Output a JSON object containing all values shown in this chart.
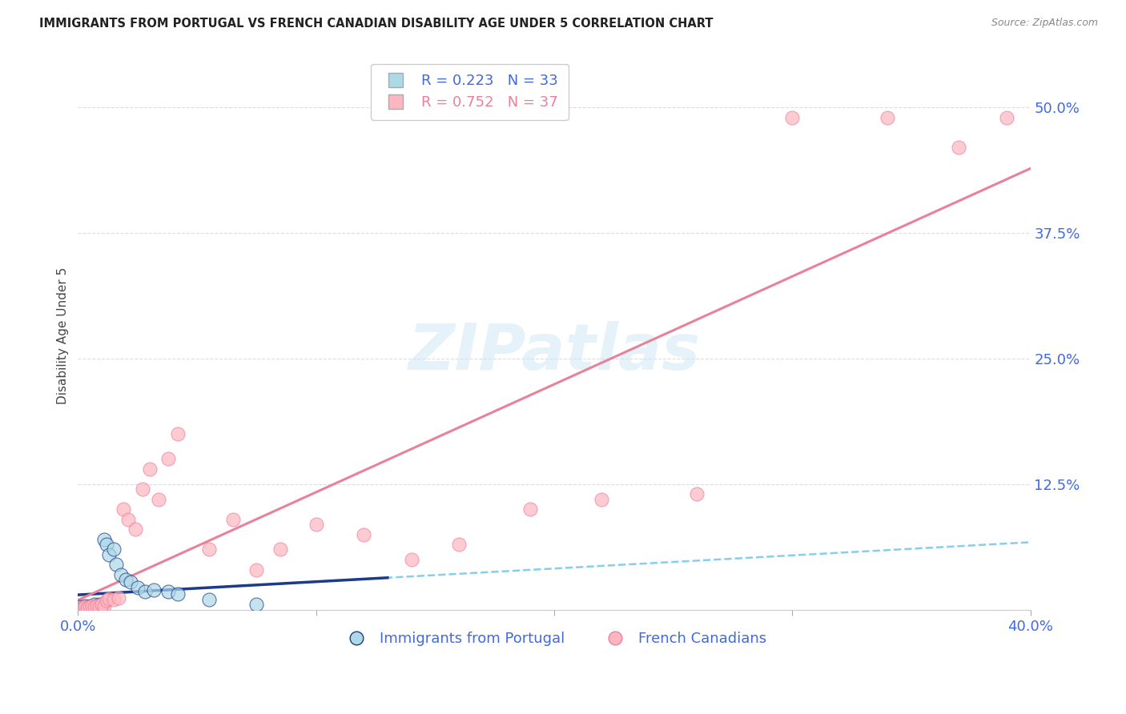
{
  "title": "IMMIGRANTS FROM PORTUGAL VS FRENCH CANADIAN DISABILITY AGE UNDER 5 CORRELATION CHART",
  "source": "Source: ZipAtlas.com",
  "xlim": [
    0.0,
    0.4
  ],
  "ylim": [
    0.0,
    0.545
  ],
  "ylabel": "Disability Age Under 5",
  "legend_labels_bottom": [
    "Immigrants from Portugal",
    "French Canadians"
  ],
  "portugal_x": [
    0.001,
    0.002,
    0.003,
    0.003,
    0.004,
    0.004,
    0.005,
    0.005,
    0.006,
    0.006,
    0.007,
    0.007,
    0.008,
    0.008,
    0.009,
    0.009,
    0.01,
    0.01,
    0.011,
    0.012,
    0.013,
    0.015,
    0.016,
    0.018,
    0.02,
    0.022,
    0.025,
    0.028,
    0.032,
    0.038,
    0.042,
    0.055,
    0.075
  ],
  "portugal_y": [
    0.003,
    0.002,
    0.003,
    0.004,
    0.002,
    0.003,
    0.003,
    0.004,
    0.002,
    0.003,
    0.004,
    0.005,
    0.003,
    0.004,
    0.003,
    0.005,
    0.004,
    0.005,
    0.07,
    0.065,
    0.055,
    0.06,
    0.045,
    0.035,
    0.03,
    0.028,
    0.022,
    0.018,
    0.02,
    0.018,
    0.016,
    0.01,
    0.005
  ],
  "french_x": [
    0.002,
    0.003,
    0.004,
    0.005,
    0.006,
    0.007,
    0.008,
    0.009,
    0.01,
    0.011,
    0.012,
    0.013,
    0.015,
    0.017,
    0.019,
    0.021,
    0.024,
    0.027,
    0.03,
    0.034,
    0.038,
    0.042,
    0.055,
    0.065,
    0.075,
    0.085,
    0.1,
    0.12,
    0.14,
    0.16,
    0.19,
    0.22,
    0.26,
    0.3,
    0.34,
    0.37,
    0.39
  ],
  "french_y": [
    0.002,
    0.003,
    0.002,
    0.003,
    0.004,
    0.003,
    0.004,
    0.003,
    0.005,
    0.004,
    0.009,
    0.011,
    0.01,
    0.012,
    0.1,
    0.09,
    0.08,
    0.12,
    0.14,
    0.11,
    0.15,
    0.175,
    0.06,
    0.09,
    0.04,
    0.06,
    0.085,
    0.075,
    0.05,
    0.065,
    0.1,
    0.11,
    0.115,
    0.49,
    0.49,
    0.46,
    0.49
  ],
  "portugal_R": 0.223,
  "portugal_N": 33,
  "french_R": 0.752,
  "french_N": 37,
  "scatter_color_portugal": "#ADD8E6",
  "scatter_color_french": "#FFB6C1",
  "line_color_portugal_solid": "#1E3A8A",
  "line_color_portugal_dashed": "#87CEEB",
  "line_color_french": "#E8829A",
  "background_color": "#FFFFFF",
  "watermark": "ZIPatlas",
  "grid_color": "#DDDDDD",
  "title_color": "#222222",
  "axis_tick_color": "#4169E1",
  "ylabel_color": "#444444",
  "source_color": "#888888"
}
